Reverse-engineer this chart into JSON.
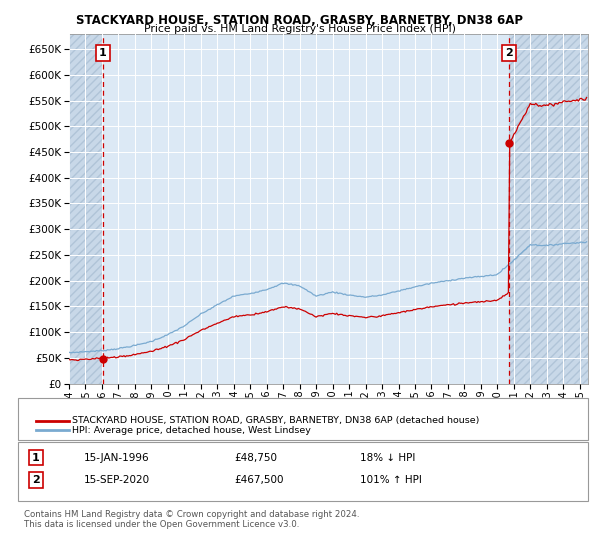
{
  "title": "STACKYARD HOUSE, STATION ROAD, GRASBY, BARNETBY, DN38 6AP",
  "subtitle": "Price paid vs. HM Land Registry's House Price Index (HPI)",
  "legend_line1": "STACKYARD HOUSE, STATION ROAD, GRASBY, BARNETBY, DN38 6AP (detached house)",
  "legend_line2": "HPI: Average price, detached house, West Lindsey",
  "annotation1_label": "1",
  "annotation1_date": "15-JAN-1996",
  "annotation1_price": "£48,750",
  "annotation1_pct": "18% ↓ HPI",
  "annotation2_label": "2",
  "annotation2_date": "15-SEP-2020",
  "annotation2_price": "£467,500",
  "annotation2_pct": "101% ↑ HPI",
  "footnote": "Contains HM Land Registry data © Crown copyright and database right 2024.\nThis data is licensed under the Open Government Licence v3.0.",
  "sale_color": "#cc0000",
  "hpi_color": "#7aaad0",
  "hatch_color": "#c8d8e8",
  "background_color": "#dce9f5",
  "grid_color": "#ffffff",
  "ylim": [
    0,
    680000
  ],
  "yticks": [
    0,
    50000,
    100000,
    150000,
    200000,
    250000,
    300000,
    350000,
    400000,
    450000,
    500000,
    550000,
    600000,
    650000
  ],
  "sale1_x": 1996.04,
  "sale1_y": 48750,
  "sale2_x": 2020.71,
  "sale2_y": 467500,
  "xlim_left": 1994.0,
  "xlim_right": 2025.5
}
